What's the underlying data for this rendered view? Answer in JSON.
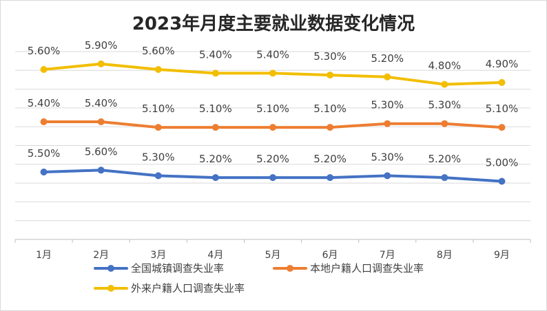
{
  "chart_data": {
    "type": "line",
    "title": "2023年月度主要就业数据变化情况",
    "categories": [
      "1月",
      "2月",
      "3月",
      "4月",
      "5月",
      "6月",
      "7月",
      "8月",
      "9月"
    ],
    "series": [
      {
        "name": "全国城镇调查失业率",
        "color": "#4472C4",
        "values": [
          5.5,
          5.6,
          5.3,
          5.2,
          5.2,
          5.2,
          5.3,
          5.2,
          5.0
        ],
        "labels": [
          "5.50%",
          "5.60%",
          "5.30%",
          "5.20%",
          "5.20%",
          "5.20%",
          "5.30%",
          "5.20%",
          "5.00%"
        ]
      },
      {
        "name": "本地户籍人口调查失业率",
        "color": "#ED7D31",
        "values": [
          5.4,
          5.4,
          5.1,
          5.1,
          5.1,
          5.1,
          5.3,
          5.3,
          5.1
        ],
        "labels": [
          "5.40%",
          "5.40%",
          "5.10%",
          "5.10%",
          "5.10%",
          "5.10%",
          "5.30%",
          "5.30%",
          "5.10%"
        ]
      },
      {
        "name": "外来户籍人口调查失业率",
        "color": "#F2BE00",
        "values": [
          5.6,
          5.9,
          5.6,
          5.4,
          5.4,
          5.3,
          5.2,
          4.8,
          4.9
        ],
        "labels": [
          "5.60%",
          "5.90%",
          "5.60%",
          "5.40%",
          "5.40%",
          "5.30%",
          "5.20%",
          "4.80%",
          "4.90%"
        ]
      }
    ],
    "grid": true,
    "legend": "bottom"
  }
}
